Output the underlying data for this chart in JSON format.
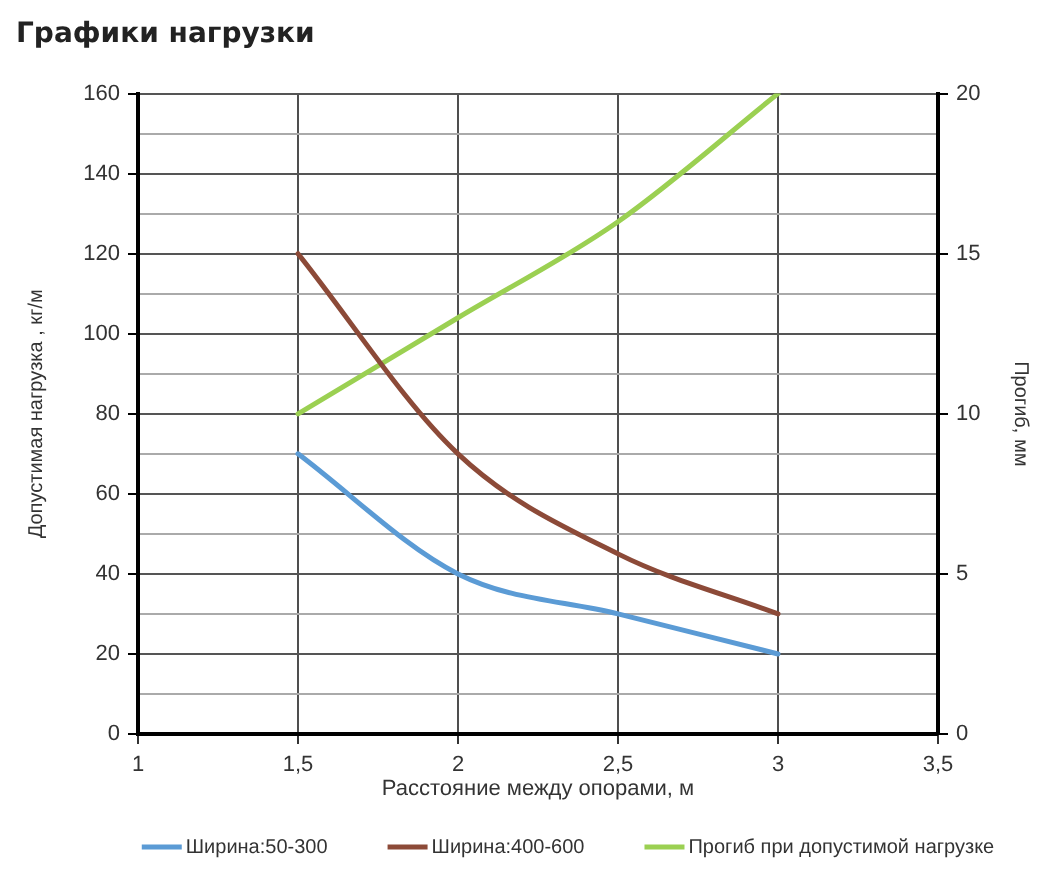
{
  "chart_data": {
    "type": "line",
    "title": "Графики нагрузки",
    "xlabel": "Расстояние между опорами, м",
    "ylabel": "Допустимая нагрузка , кг/м",
    "y2label": "Прогиб, мм",
    "x": [
      1.5,
      2,
      2.5,
      3
    ],
    "series": [
      {
        "name": "Ширина:50-300",
        "color": "#5b9bd5",
        "values": [
          70,
          40,
          30,
          20
        ]
      },
      {
        "name": "Ширина:400-600",
        "color": "#8c4a38",
        "values": [
          120,
          70,
          45,
          30
        ]
      },
      {
        "name": "Прогиб при допустимой нагрузке",
        "color": "#9bd052",
        "values": [
          10,
          13,
          16,
          20
        ],
        "axis": "y2"
      }
    ],
    "xlim": [
      1,
      3.5
    ],
    "xticks": [
      1,
      {
        "value": 1.5,
        "label": "1,5"
      },
      2,
      {
        "value": 2.5,
        "label": "2,5"
      },
      3,
      {
        "value": 3.5,
        "label": "3,5"
      }
    ],
    "ylim": [
      0,
      160
    ],
    "yticks": [
      0,
      {
        "value": 10,
        "label": null
      },
      20,
      {
        "value": 30,
        "label": null
      },
      40,
      {
        "value": 50,
        "label": null
      },
      60,
      {
        "value": 70,
        "label": null
      },
      80,
      {
        "value": 90,
        "label": null
      },
      100,
      {
        "value": 110,
        "label": null
      },
      120,
      {
        "value": 130,
        "label": null
      },
      140,
      {
        "value": 150,
        "label": null
      },
      160
    ],
    "y2lim": [
      0,
      20
    ],
    "y2ticks": [
      0,
      5,
      10,
      15,
      20
    ],
    "grid": true,
    "legend": "bottom",
    "marker": "none",
    "line_style": "solid"
  }
}
